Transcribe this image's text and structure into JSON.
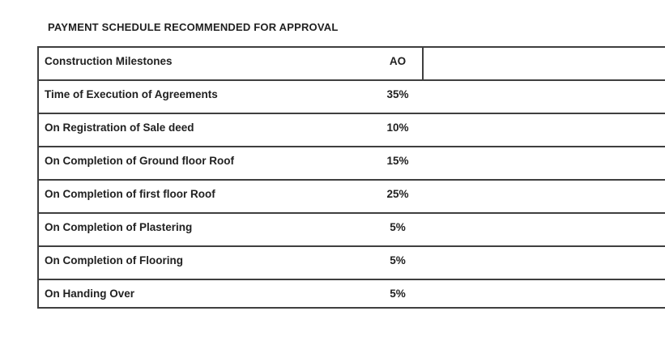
{
  "page": {
    "title": "PAYMENT SCHEDULE RECOMMENDED FOR APPROVAL"
  },
  "table": {
    "rows": [
      {
        "milestone": "Construction Milestones",
        "value": "AO"
      },
      {
        "milestone": "Time of Execution of Agreements",
        "value": "35%"
      },
      {
        "milestone": "On Registration of Sale deed",
        "value": "10%"
      },
      {
        "milestone": "On Completion of Ground floor Roof",
        "value": "15%"
      },
      {
        "milestone": "On Completion of first floor Roof",
        "value": "25%"
      },
      {
        "milestone": "On Completion of Plastering",
        "value": "5%"
      },
      {
        "milestone": "On Completion of Flooring",
        "value": "5%"
      },
      {
        "milestone": "On Handing Over",
        "value": "5%"
      }
    ],
    "colors": {
      "text": "#212121",
      "border": "#3f3f3f",
      "background": "#ffffff"
    }
  }
}
